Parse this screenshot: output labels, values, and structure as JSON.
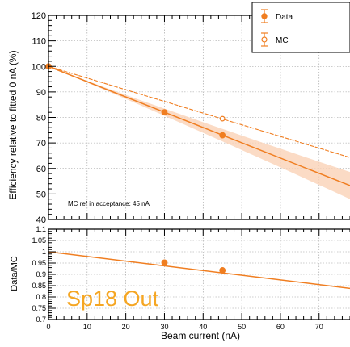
{
  "chart_data": [
    {
      "type": "line",
      "panel": "top",
      "ylabel": "Efficiency relative to fitted 0 nA (%)",
      "xlim": [
        0,
        78
      ],
      "ylim": [
        40,
        120
      ],
      "yticks": [
        40,
        50,
        60,
        70,
        80,
        90,
        100,
        110,
        120
      ],
      "grid": true,
      "legend_position": "top-right",
      "legend": [
        {
          "label": "Data",
          "marker": "filled-circle"
        },
        {
          "label": "MC",
          "marker": "open-circle"
        }
      ],
      "annotation": "MC ref in acceptance: 45 nA",
      "series": [
        {
          "name": "Data",
          "kind": "points",
          "marker": "filled-circle",
          "points": [
            {
              "x": 0,
              "y": 100,
              "yerr": 1.0
            },
            {
              "x": 30,
              "y": 82,
              "yerr": 1.0
            },
            {
              "x": 45,
              "y": 73,
              "yerr": 1.0
            }
          ]
        },
        {
          "name": "MC",
          "kind": "points",
          "marker": "open-circle",
          "points": [
            {
              "x": 45,
              "y": 79.5,
              "yerr": 0.6
            }
          ]
        },
        {
          "kind": "fit",
          "style": "solid",
          "x": [
            0,
            78
          ],
          "y": [
            100,
            53.3
          ],
          "band_halfwidth": [
            0,
            5.3
          ]
        },
        {
          "kind": "fit",
          "style": "dashed",
          "x": [
            0,
            78
          ],
          "y": [
            100,
            64.3
          ]
        }
      ]
    },
    {
      "type": "line",
      "panel": "bottom",
      "xlabel": "Beam current (nA)",
      "ylabel": "Data/MC",
      "xlim": [
        0,
        78
      ],
      "ylim": [
        0.7,
        1.1
      ],
      "xticks": [
        0,
        10,
        20,
        30,
        40,
        50,
        60,
        70
      ],
      "yticks": [
        0.7,
        0.75,
        0.8,
        0.85,
        0.9,
        0.95,
        1,
        1.05,
        1.1
      ],
      "grid": true,
      "series": [
        {
          "kind": "points",
          "marker": "filled-circle",
          "points": [
            {
              "x": 30,
              "y": 0.952,
              "yerr": 0.012
            },
            {
              "x": 45,
              "y": 0.918,
              "yerr": 0.006
            }
          ]
        },
        {
          "kind": "fit",
          "style": "solid",
          "x": [
            0,
            78
          ],
          "y": [
            1.0,
            0.838
          ]
        }
      ]
    }
  ],
  "overlay_label": "Sp18 Out",
  "colors": {
    "series": "#f07e21",
    "band": "#fad2b6",
    "overlay_text": "#f5a623",
    "grid": "#9a9a9a"
  }
}
